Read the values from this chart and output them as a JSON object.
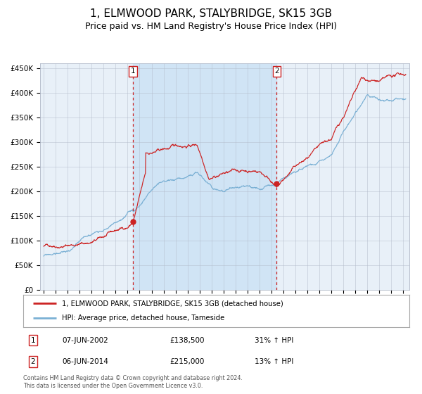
{
  "title": "1, ELMWOOD PARK, STALYBRIDGE, SK15 3GB",
  "subtitle": "Price paid vs. HM Land Registry's House Price Index (HPI)",
  "title_fontsize": 11,
  "subtitle_fontsize": 9,
  "background_color": "#ffffff",
  "plot_bg_color": "#e8f0f8",
  "span_bg_color": "#d0e4f5",
  "ylabel": "",
  "xlabel": "",
  "ylim": [
    0,
    460000
  ],
  "yticks": [
    0,
    50000,
    100000,
    150000,
    200000,
    250000,
    300000,
    350000,
    400000,
    450000
  ],
  "ytick_labels": [
    "£0",
    "£50K",
    "£100K",
    "£150K",
    "£200K",
    "£250K",
    "£300K",
    "£350K",
    "£400K",
    "£450K"
  ],
  "red_line_color": "#cc2222",
  "blue_line_color": "#7ab0d4",
  "marker_color": "#cc2222",
  "dashed_line_color": "#cc2222",
  "sale1_x": 2002.44,
  "sale1_y": 138500,
  "sale2_x": 2014.44,
  "sale2_y": 215000,
  "legend1": "1, ELMWOOD PARK, STALYBRIDGE, SK15 3GB (detached house)",
  "legend2": "HPI: Average price, detached house, Tameside",
  "ann1_date": "07-JUN-2002",
  "ann1_price": "£138,500",
  "ann1_hpi": "31% ↑ HPI",
  "ann2_date": "06-JUN-2014",
  "ann2_price": "£215,000",
  "ann2_hpi": "13% ↑ HPI",
  "footnote": "Contains HM Land Registry data © Crown copyright and database right 2024.\nThis data is licensed under the Open Government Licence v3.0.",
  "xmin": 1994.7,
  "xmax": 2025.5
}
